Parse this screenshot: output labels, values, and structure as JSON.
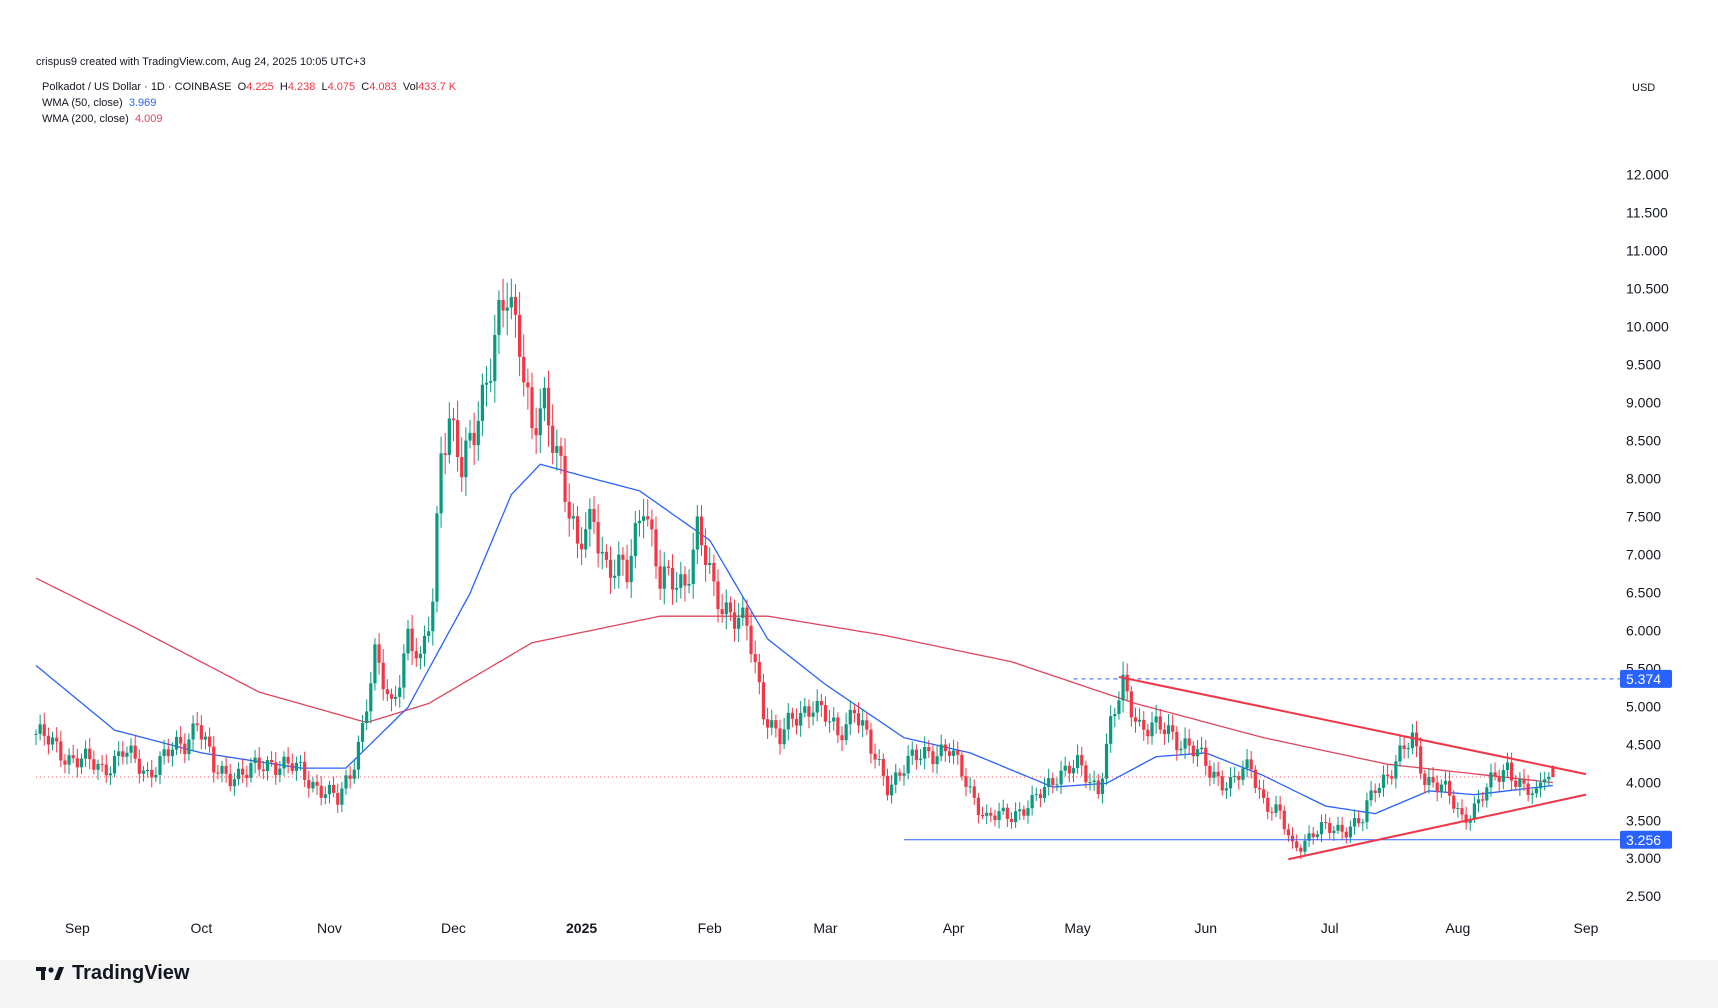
{
  "header": {
    "attribution": "crispus9 created with TradingView.com, Aug 24, 2025 10:05 UTC+3",
    "symbol": "Polkadot / US Dollar · 1D · COINBASE",
    "open_label": "O",
    "open_value": "4.225",
    "high_label": "H",
    "high_value": "4.238",
    "low_label": "L",
    "low_value": "4.075",
    "close_label": "C",
    "close_value": "4.083",
    "vol_label": "Vol",
    "vol_value": "433.7 K",
    "wma50_label": "WMA (50, close)",
    "wma50_value": "3.969",
    "wma200_label": "WMA (200, close)",
    "wma200_value": "4.009",
    "currency": "USD"
  },
  "footer": {
    "logo_text": "TradingView"
  },
  "colors": {
    "up": "#089981",
    "down": "#f23645",
    "wma50": "#2962ff",
    "wma200": "#e0455b",
    "trendline": "#f23645",
    "support": "#2962ff",
    "price_badge": "#2962ff"
  },
  "chart_data": {
    "type": "candlestick",
    "xlabel": "",
    "ylabel": "",
    "ylim": [
      2.2,
      12.6
    ],
    "y_ticks": [
      "12.000",
      "11.500",
      "11.000",
      "10.500",
      "10.000",
      "9.500",
      "9.000",
      "8.500",
      "8.000",
      "7.500",
      "7.000",
      "6.500",
      "6.000",
      "5.500",
      "5.000",
      "4.500",
      "4.000",
      "3.500",
      "3.000",
      "2.500"
    ],
    "x_ticks": [
      {
        "label": "Sep",
        "date": "2024-09-01",
        "bold": false
      },
      {
        "label": "Oct",
        "date": "2024-10-01",
        "bold": false
      },
      {
        "label": "Nov",
        "date": "2024-11-01",
        "bold": false
      },
      {
        "label": "Dec",
        "date": "2024-12-01",
        "bold": false
      },
      {
        "label": "2025",
        "date": "2025-01-01",
        "bold": true
      },
      {
        "label": "Feb",
        "date": "2025-02-01",
        "bold": false
      },
      {
        "label": "Mar",
        "date": "2025-03-01",
        "bold": false
      },
      {
        "label": "Apr",
        "date": "2025-04-01",
        "bold": false
      },
      {
        "label": "May",
        "date": "2025-05-01",
        "bold": false
      },
      {
        "label": "Jun",
        "date": "2025-06-01",
        "bold": false
      },
      {
        "label": "Jul",
        "date": "2025-07-01",
        "bold": false
      },
      {
        "label": "Aug",
        "date": "2025-08-01",
        "bold": false
      },
      {
        "label": "Sep",
        "date": "2025-09-01",
        "bold": false
      }
    ],
    "x_range": [
      "2024-08-22",
      "2025-09-01"
    ],
    "close_anchors": [
      {
        "date": "2024-08-22",
        "value": 4.65
      },
      {
        "date": "2024-08-30",
        "value": 4.35
      },
      {
        "date": "2024-09-07",
        "value": 4.2
      },
      {
        "date": "2024-09-12",
        "value": 4.4
      },
      {
        "date": "2024-09-18",
        "value": 4.15
      },
      {
        "date": "2024-09-27",
        "value": 4.55
      },
      {
        "date": "2024-09-30",
        "value": 4.85
      },
      {
        "date": "2024-10-04",
        "value": 4.15
      },
      {
        "date": "2024-10-12",
        "value": 4.12
      },
      {
        "date": "2024-10-18",
        "value": 4.3
      },
      {
        "date": "2024-10-25",
        "value": 4.15
      },
      {
        "date": "2024-11-03",
        "value": 3.75
      },
      {
        "date": "2024-11-06",
        "value": 4.15
      },
      {
        "date": "2024-11-09",
        "value": 4.75
      },
      {
        "date": "2024-11-12",
        "value": 5.6
      },
      {
        "date": "2024-11-16",
        "value": 5.05
      },
      {
        "date": "2024-11-20",
        "value": 5.9
      },
      {
        "date": "2024-11-23",
        "value": 5.5
      },
      {
        "date": "2024-11-26",
        "value": 6.5
      },
      {
        "date": "2024-11-28",
        "value": 8.5
      },
      {
        "date": "2024-11-30",
        "value": 8.7
      },
      {
        "date": "2024-12-03",
        "value": 8.05
      },
      {
        "date": "2024-12-07",
        "value": 9.0
      },
      {
        "date": "2024-12-10",
        "value": 9.5
      },
      {
        "date": "2024-12-14",
        "value": 10.4
      },
      {
        "date": "2024-12-17",
        "value": 10.0
      },
      {
        "date": "2024-12-20",
        "value": 8.6
      },
      {
        "date": "2024-12-23",
        "value": 8.85
      },
      {
        "date": "2024-12-27",
        "value": 8.3
      },
      {
        "date": "2024-12-31",
        "value": 7.0
      },
      {
        "date": "2025-01-04",
        "value": 7.5
      },
      {
        "date": "2025-01-07",
        "value": 6.9
      },
      {
        "date": "2025-01-12",
        "value": 6.7
      },
      {
        "date": "2025-01-16",
        "value": 7.85
      },
      {
        "date": "2025-01-20",
        "value": 6.6
      },
      {
        "date": "2025-01-26",
        "value": 6.7
      },
      {
        "date": "2025-01-29",
        "value": 7.3
      },
      {
        "date": "2025-02-02",
        "value": 6.5
      },
      {
        "date": "2025-02-06",
        "value": 6.3
      },
      {
        "date": "2025-02-10",
        "value": 6.0
      },
      {
        "date": "2025-02-14",
        "value": 5.0
      },
      {
        "date": "2025-02-18",
        "value": 4.6
      },
      {
        "date": "2025-02-22",
        "value": 4.85
      },
      {
        "date": "2025-02-26",
        "value": 5.1
      },
      {
        "date": "2025-03-04",
        "value": 4.6
      },
      {
        "date": "2025-03-08",
        "value": 5.05
      },
      {
        "date": "2025-03-12",
        "value": 4.4
      },
      {
        "date": "2025-03-16",
        "value": 4.0
      },
      {
        "date": "2025-03-20",
        "value": 4.2
      },
      {
        "date": "2025-03-26",
        "value": 4.45
      },
      {
        "date": "2025-03-31",
        "value": 4.4
      },
      {
        "date": "2025-04-04",
        "value": 4.05
      },
      {
        "date": "2025-04-09",
        "value": 3.5
      },
      {
        "date": "2025-04-14",
        "value": 3.6
      },
      {
        "date": "2025-04-20",
        "value": 3.7
      },
      {
        "date": "2025-04-26",
        "value": 4.15
      },
      {
        "date": "2025-05-01",
        "value": 4.2
      },
      {
        "date": "2025-05-06",
        "value": 3.95
      },
      {
        "date": "2025-05-09",
        "value": 4.75
      },
      {
        "date": "2025-05-12",
        "value": 5.25
      },
      {
        "date": "2025-05-16",
        "value": 4.8
      },
      {
        "date": "2025-05-20",
        "value": 4.7
      },
      {
        "date": "2025-05-24",
        "value": 4.65
      },
      {
        "date": "2025-05-28",
        "value": 4.5
      },
      {
        "date": "2025-06-02",
        "value": 4.15
      },
      {
        "date": "2025-06-07",
        "value": 4.0
      },
      {
        "date": "2025-06-12",
        "value": 4.2
      },
      {
        "date": "2025-06-15",
        "value": 3.8
      },
      {
        "date": "2025-06-19",
        "value": 3.55
      },
      {
        "date": "2025-06-22",
        "value": 3.15
      },
      {
        "date": "2025-06-27",
        "value": 3.35
      },
      {
        "date": "2025-07-03",
        "value": 3.4
      },
      {
        "date": "2025-07-09",
        "value": 3.5
      },
      {
        "date": "2025-07-12",
        "value": 3.95
      },
      {
        "date": "2025-07-18",
        "value": 4.35
      },
      {
        "date": "2025-07-21",
        "value": 4.55
      },
      {
        "date": "2025-07-24",
        "value": 4.1
      },
      {
        "date": "2025-07-28",
        "value": 3.95
      },
      {
        "date": "2025-08-02",
        "value": 3.55
      },
      {
        "date": "2025-08-06",
        "value": 3.75
      },
      {
        "date": "2025-08-10",
        "value": 4.05
      },
      {
        "date": "2025-08-13",
        "value": 4.25
      },
      {
        "date": "2025-08-17",
        "value": 3.9
      },
      {
        "date": "2025-08-20",
        "value": 3.8
      },
      {
        "date": "2025-08-22",
        "value": 4.2
      },
      {
        "date": "2025-08-24",
        "value": 4.08
      }
    ],
    "wma200_anchors": [
      {
        "date": "2024-08-22",
        "value": 6.7
      },
      {
        "date": "2024-09-15",
        "value": 6.05
      },
      {
        "date": "2024-10-15",
        "value": 5.2
      },
      {
        "date": "2024-11-10",
        "value": 4.8
      },
      {
        "date": "2024-11-25",
        "value": 5.05
      },
      {
        "date": "2024-12-20",
        "value": 5.85
      },
      {
        "date": "2025-01-20",
        "value": 6.2
      },
      {
        "date": "2025-02-15",
        "value": 6.2
      },
      {
        "date": "2025-03-15",
        "value": 5.95
      },
      {
        "date": "2025-04-15",
        "value": 5.6
      },
      {
        "date": "2025-05-15",
        "value": 5.05
      },
      {
        "date": "2025-06-15",
        "value": 4.6
      },
      {
        "date": "2025-07-15",
        "value": 4.25
      },
      {
        "date": "2025-08-24",
        "value": 4.01
      }
    ],
    "wma50_anchors": [
      {
        "date": "2024-08-22",
        "value": 5.55
      },
      {
        "date": "2024-09-10",
        "value": 4.7
      },
      {
        "date": "2024-10-01",
        "value": 4.4
      },
      {
        "date": "2024-10-25",
        "value": 4.2
      },
      {
        "date": "2024-11-05",
        "value": 4.2
      },
      {
        "date": "2024-11-20",
        "value": 5.0
      },
      {
        "date": "2024-12-05",
        "value": 6.5
      },
      {
        "date": "2024-12-15",
        "value": 7.8
      },
      {
        "date": "2024-12-22",
        "value": 8.2
      },
      {
        "date": "2025-01-01",
        "value": 8.05
      },
      {
        "date": "2025-01-15",
        "value": 7.85
      },
      {
        "date": "2025-02-01",
        "value": 7.2
      },
      {
        "date": "2025-02-15",
        "value": 5.9
      },
      {
        "date": "2025-03-01",
        "value": 5.3
      },
      {
        "date": "2025-03-20",
        "value": 4.6
      },
      {
        "date": "2025-04-05",
        "value": 4.4
      },
      {
        "date": "2025-04-25",
        "value": 3.95
      },
      {
        "date": "2025-05-08",
        "value": 4.0
      },
      {
        "date": "2025-05-20",
        "value": 4.35
      },
      {
        "date": "2025-06-01",
        "value": 4.4
      },
      {
        "date": "2025-06-15",
        "value": 4.1
      },
      {
        "date": "2025-06-30",
        "value": 3.7
      },
      {
        "date": "2025-07-12",
        "value": 3.6
      },
      {
        "date": "2025-07-25",
        "value": 3.9
      },
      {
        "date": "2025-08-05",
        "value": 3.85
      },
      {
        "date": "2025-08-24",
        "value": 3.97
      }
    ],
    "annotations": {
      "resistance_trendline": [
        {
          "date": "2025-05-11",
          "value": 5.4
        },
        {
          "date": "2025-09-01",
          "value": 4.12
        }
      ],
      "support_trendline": [
        {
          "date": "2025-06-21",
          "value": 3.0
        },
        {
          "date": "2025-09-01",
          "value": 3.85
        }
      ],
      "support_level": {
        "value": 3.256,
        "label": "3.256",
        "from": "2025-03-20"
      },
      "dashed_level": {
        "value": 5.374,
        "label": "5.374",
        "from": "2025-04-30"
      },
      "last_price_line": {
        "value": 4.083
      }
    }
  }
}
